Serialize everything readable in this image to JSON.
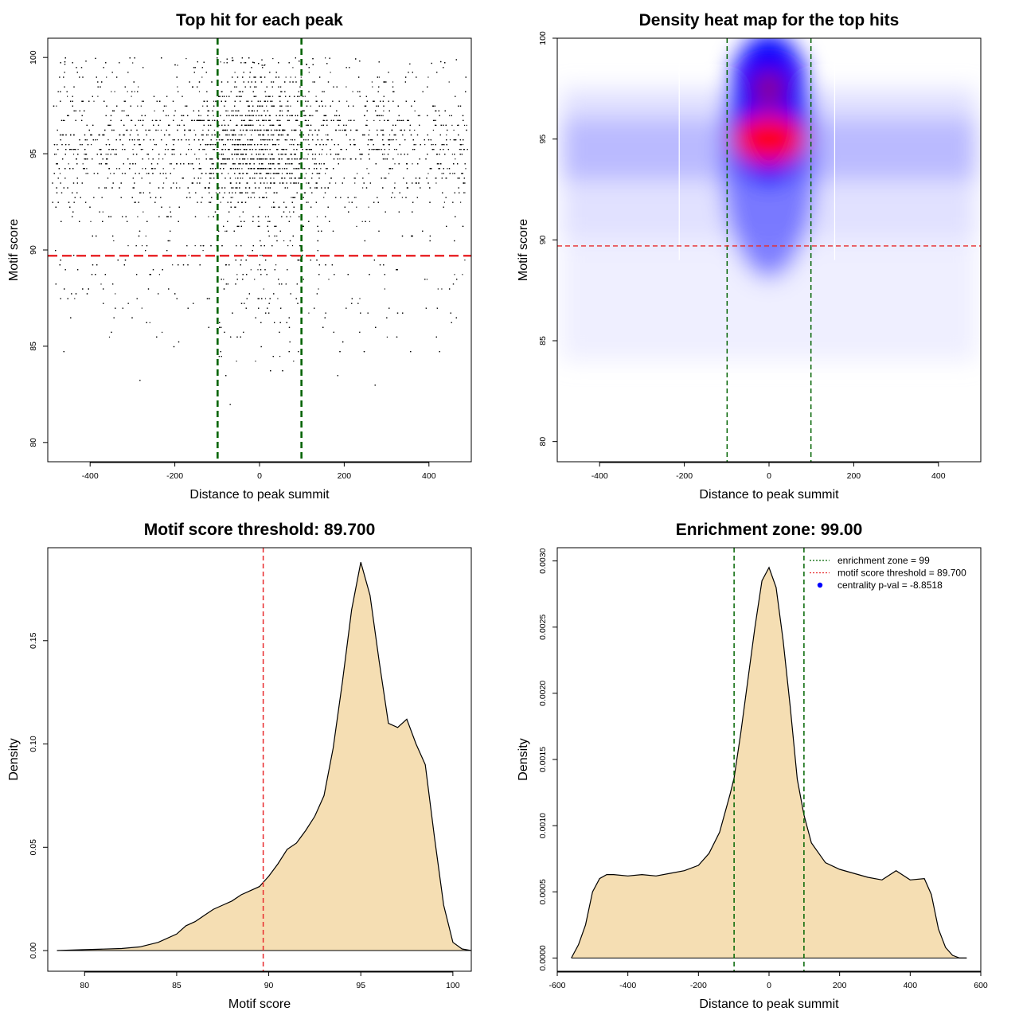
{
  "chart_data": [
    {
      "type": "scatter",
      "title": "Top hit for each peak",
      "xlabel": "Distance to peak summit",
      "ylabel": "Motif score",
      "xlim": [
        -500,
        500
      ],
      "ylim": [
        79,
        101
      ],
      "xticks": [
        -400,
        -200,
        0,
        200,
        400
      ],
      "yticks": [
        80,
        85,
        90,
        95,
        100
      ],
      "xtick_labels": [
        "-400",
        "-200",
        "0",
        "200",
        "400"
      ],
      "ytick_labels": [
        "80",
        "85",
        "90",
        "95",
        "100"
      ],
      "vlines": [
        -99,
        99
      ],
      "hlines": [
        89.7
      ],
      "line_colors": {
        "vertical": "#006400",
        "horizontal": "#e8292b"
      },
      "points_description": "many thousand points, dense near x=0 and y 93-99",
      "point_color": "#000000"
    },
    {
      "type": "heatmap",
      "title": "Density heat map for the top hits",
      "xlabel": "Distance to peak summit",
      "ylabel": "Motif score",
      "xlim": [
        -500,
        500
      ],
      "ylim": [
        79,
        100
      ],
      "xticks": [
        -400,
        -200,
        0,
        200,
        400
      ],
      "yticks": [
        80,
        85,
        90,
        95,
        100
      ],
      "xtick_labels": [
        "-400",
        "-200",
        "0",
        "200",
        "400"
      ],
      "ytick_labels": [
        "80",
        "85",
        "90",
        "95",
        "100"
      ],
      "vlines": [
        -99,
        99
      ],
      "hlines": [
        89.7
      ],
      "line_colors": {
        "vertical": "#006400",
        "horizontal": "#e8292b"
      },
      "colormap": [
        "#ffffff",
        "#0000ff",
        "#ff0000"
      ],
      "peak": {
        "x": 0,
        "y": 95
      }
    },
    {
      "type": "area",
      "title": "Motif score threshold: 89.700",
      "xlabel": "Motif score",
      "ylabel": "Density",
      "xlim": [
        78,
        101
      ],
      "ylim": [
        -0.01,
        0.195
      ],
      "xticks": [
        80,
        85,
        90,
        95,
        100
      ],
      "yticks": [
        0,
        0.05,
        0.1,
        0.15
      ],
      "xtick_labels": [
        "80",
        "85",
        "90",
        "95",
        "100"
      ],
      "ytick_labels": [
        "0.00",
        "0.05",
        "0.10",
        "0.15"
      ],
      "vlines": [
        89.7
      ],
      "line_colors": {
        "vertical": "#e8292b"
      },
      "fill": "#f5deb3",
      "x": [
        78.5,
        80,
        81,
        82,
        83,
        84,
        85,
        85.5,
        86,
        86.5,
        87,
        87.5,
        88,
        88.5,
        89,
        89.5,
        89.7,
        90,
        90.5,
        91,
        91.5,
        92,
        92.5,
        93,
        93.5,
        94,
        94.5,
        95,
        95.5,
        96,
        96.5,
        97,
        97.5,
        98,
        98.5,
        99,
        99.5,
        100,
        100.5,
        101
      ],
      "y": [
        0,
        0.0005,
        0.0007,
        0.001,
        0.0018,
        0.004,
        0.008,
        0.012,
        0.014,
        0.017,
        0.02,
        0.022,
        0.024,
        0.027,
        0.029,
        0.031,
        0.033,
        0.036,
        0.042,
        0.049,
        0.052,
        0.058,
        0.065,
        0.075,
        0.098,
        0.13,
        0.165,
        0.188,
        0.172,
        0.14,
        0.11,
        0.108,
        0.112,
        0.1,
        0.09,
        0.055,
        0.022,
        0.004,
        0.0008,
        0
      ]
    },
    {
      "type": "area",
      "title": "Enrichment zone: 99.00",
      "xlabel": "Distance to peak summit",
      "ylabel": "Density",
      "xlim": [
        -600,
        600
      ],
      "ylim": [
        -0.0001,
        0.0031
      ],
      "xticks": [
        -600,
        -400,
        -200,
        0,
        200,
        400,
        600
      ],
      "yticks": [
        0,
        0.0005,
        0.001,
        0.0015,
        0.002,
        0.0025,
        0.003
      ],
      "xtick_labels": [
        "-600",
        "-400",
        "-200",
        "0",
        "200",
        "400",
        "600"
      ],
      "ytick_labels": [
        "0.0000",
        "0.0005",
        "0.0010",
        "0.0015",
        "0.0020",
        "0.0025",
        "0.0030"
      ],
      "vlines": [
        -99,
        99
      ],
      "line_colors": {
        "vertical": "#006400"
      },
      "fill": "#f5deb3",
      "x": [
        -560,
        -540,
        -520,
        -500,
        -480,
        -460,
        -440,
        -400,
        -360,
        -320,
        -280,
        -240,
        -200,
        -170,
        -140,
        -110,
        -99,
        -80,
        -60,
        -40,
        -20,
        0,
        20,
        40,
        60,
        80,
        99,
        120,
        160,
        200,
        240,
        280,
        320,
        360,
        400,
        440,
        460,
        480,
        500,
        520,
        540,
        560
      ],
      "y": [
        0,
        0.0001,
        0.00025,
        0.0005,
        0.0006,
        0.00063,
        0.00063,
        0.00062,
        0.00063,
        0.00062,
        0.00064,
        0.00066,
        0.0007,
        0.00079,
        0.00095,
        0.00124,
        0.00136,
        0.0017,
        0.0021,
        0.0025,
        0.00285,
        0.00295,
        0.0028,
        0.0024,
        0.0019,
        0.00135,
        0.00108,
        0.00087,
        0.00072,
        0.00067,
        0.00064,
        0.00061,
        0.00059,
        0.00066,
        0.00059,
        0.0006,
        0.00048,
        0.00022,
        8e-05,
        2e-05,
        0.0,
        0
      ],
      "legend": {
        "entries": [
          {
            "label": "enrichment zone = 99",
            "color": "#006400",
            "style": "dotted-line"
          },
          {
            "label": "motif score threshold = 89.700",
            "color": "#e8292b",
            "style": "dotted-line"
          },
          {
            "label": "centrality p-val = -8.8518",
            "color": "#0000ff",
            "style": "point"
          }
        ],
        "placement": "top-right"
      }
    }
  ]
}
